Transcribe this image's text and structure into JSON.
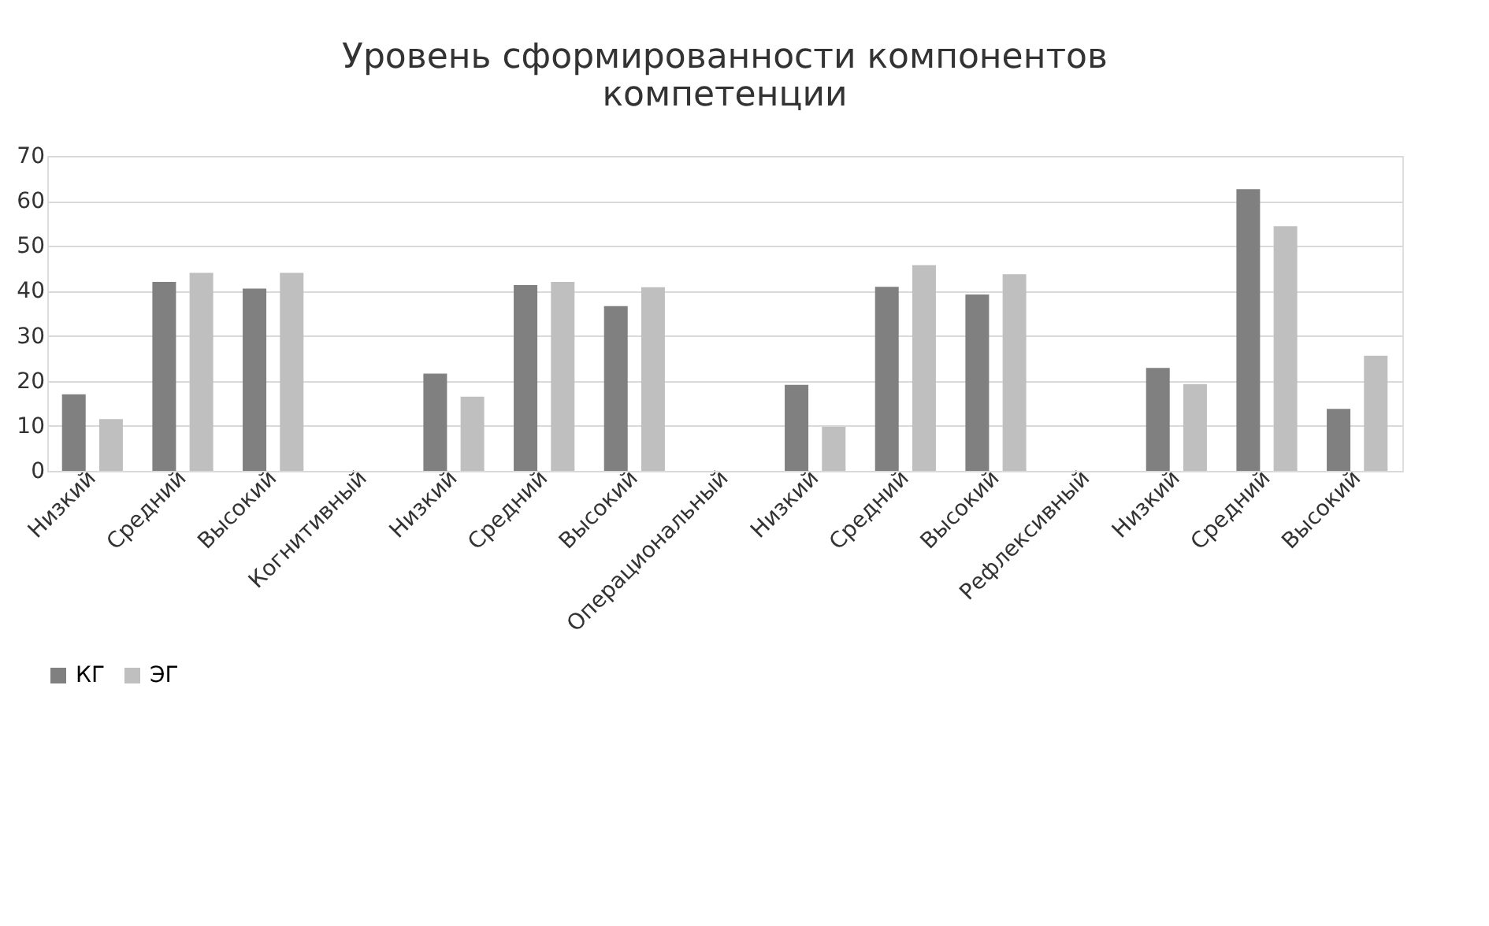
{
  "chart_data": {
    "type": "bar",
    "title": "Уровень сформированности компонентов компетенции",
    "categories": [
      "Низкий",
      "Средний",
      "Высокий",
      "Когнитивный",
      "Низкий",
      "Средний",
      "Высокий",
      "Операциональный",
      "Низкий",
      "Средний",
      "Высокий",
      "Рефлексивный",
      "Низкий",
      "Средний",
      "Высокий"
    ],
    "series": [
      {
        "name": "КГ",
        "color": "#808080",
        "values": [
          17.0,
          42.0,
          40.5,
          null,
          21.6,
          41.3,
          36.6,
          null,
          19.1,
          40.9,
          39.2,
          null,
          22.9,
          62.6,
          13.8
        ]
      },
      {
        "name": "ЭГ",
        "color": "#bfbfbf",
        "values": [
          11.5,
          44.0,
          44.0,
          null,
          16.5,
          42.0,
          40.8,
          null,
          9.8,
          45.7,
          43.7,
          null,
          19.3,
          54.4,
          25.6
        ]
      }
    ],
    "ylim": [
      0,
      70
    ],
    "yticks": [
      0,
      10,
      20,
      30,
      40,
      50,
      60,
      70
    ],
    "grid": "y",
    "legend": "bottom"
  }
}
